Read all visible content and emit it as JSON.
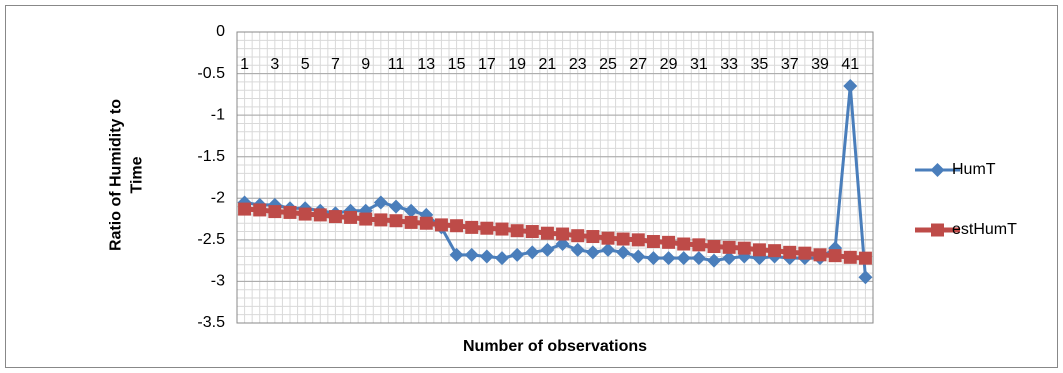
{
  "chart_data": {
    "type": "line",
    "y_label": "Ratio of Humidity to Time",
    "x_label": "Number of observations",
    "categories": [
      1,
      null,
      3,
      null,
      5,
      null,
      7,
      null,
      9,
      null,
      11,
      null,
      13,
      null,
      15,
      null,
      17,
      null,
      19,
      null,
      21,
      null,
      23,
      null,
      25,
      null,
      27,
      null,
      29,
      null,
      31,
      null,
      33,
      null,
      35,
      null,
      37,
      null,
      39,
      null,
      41,
      null
    ],
    "series": [
      {
        "name": "HumT",
        "color": "#4a7ebb",
        "marker": "diamond",
        "values": [
          -2.05,
          -2.08,
          -2.08,
          -2.12,
          -2.12,
          -2.15,
          -2.18,
          -2.15,
          -2.15,
          -2.05,
          -2.1,
          -2.15,
          -2.2,
          -2.35,
          -2.68,
          -2.68,
          -2.7,
          -2.72,
          -2.68,
          -2.65,
          -2.62,
          -2.55,
          -2.62,
          -2.65,
          -2.62,
          -2.65,
          -2.7,
          -2.72,
          -2.72,
          -2.72,
          -2.72,
          -2.75,
          -2.72,
          -2.7,
          -2.72,
          -2.7,
          -2.72,
          -2.72,
          -2.72,
          -2.6,
          -0.65,
          -2.95
        ]
      },
      {
        "name": "estHumT",
        "color": "#be4b48",
        "marker": "square",
        "values": [
          -2.13,
          -2.14,
          -2.16,
          -2.17,
          -2.19,
          -2.2,
          -2.22,
          -2.23,
          -2.25,
          -2.26,
          -2.27,
          -2.29,
          -2.3,
          -2.32,
          -2.33,
          -2.35,
          -2.36,
          -2.37,
          -2.39,
          -2.4,
          -2.42,
          -2.43,
          -2.45,
          -2.46,
          -2.48,
          -2.49,
          -2.5,
          -2.52,
          -2.53,
          -2.55,
          -2.56,
          -2.58,
          -2.59,
          -2.6,
          -2.62,
          -2.63,
          -2.65,
          -2.66,
          -2.68,
          -2.69,
          -2.71,
          -2.72
        ]
      }
    ],
    "ylim": [
      -3.5,
      0
    ],
    "yticks": [
      0,
      -0.5,
      -1,
      -1.5,
      -2,
      -2.5,
      -3,
      -3.5
    ],
    "grid": true,
    "legend": "right"
  }
}
